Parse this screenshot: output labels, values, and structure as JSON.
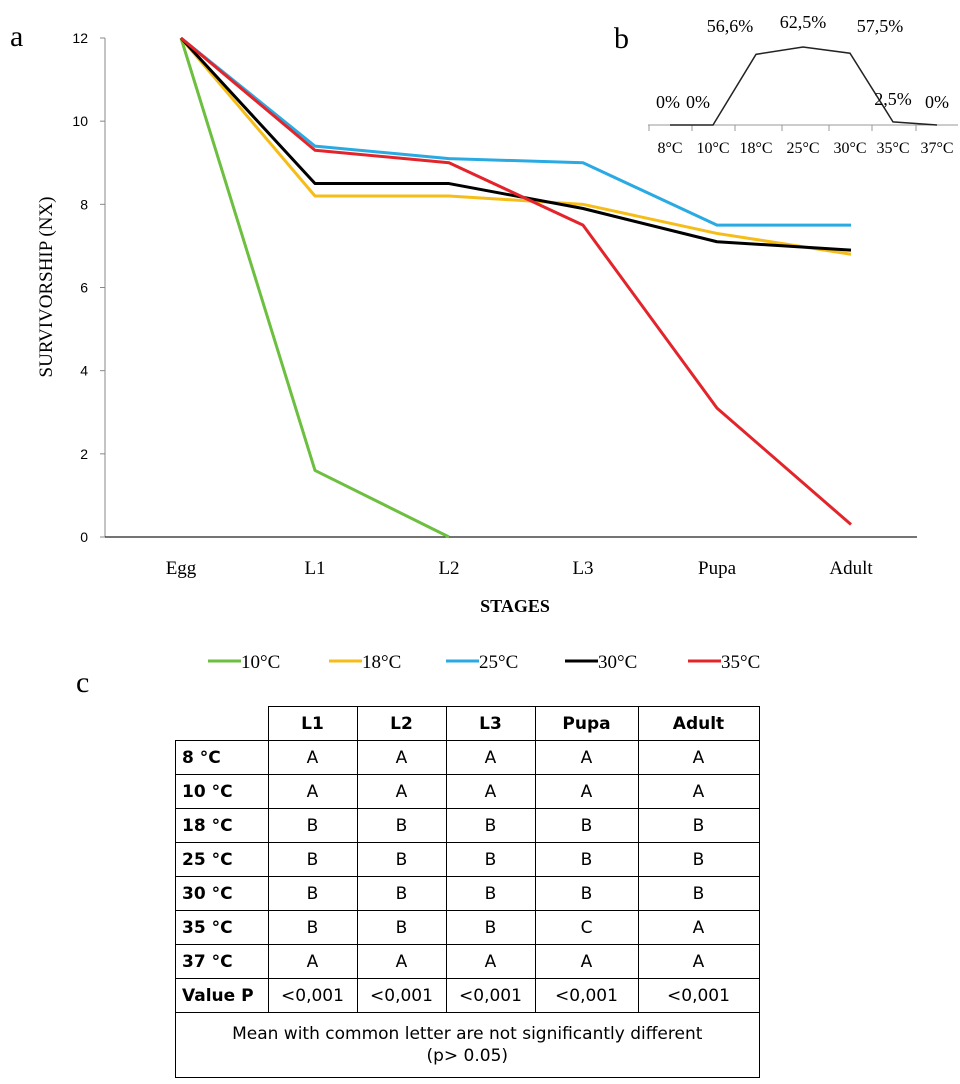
{
  "panel_a": {
    "letter": "a",
    "chart_data": {
      "type": "line",
      "categories": [
        "Egg",
        "L1",
        "L2",
        "L3",
        "Pupa",
        "Adult"
      ],
      "xlabel": "STAGES",
      "ylabel": "SURVIVORSHIP (NX)",
      "ylim": [
        0,
        12
      ],
      "yticks": [
        "0",
        "2",
        "4",
        "6",
        "8",
        "10",
        "12"
      ],
      "grid": false,
      "legend_position": "bottom",
      "series": [
        {
          "name": "10°C",
          "color": "#6cbf3f",
          "values": [
            12,
            1.6,
            0,
            null,
            null,
            null
          ]
        },
        {
          "name": "18°C",
          "color": "#f6bd18",
          "values": [
            12,
            8.2,
            8.2,
            8.0,
            7.3,
            6.8
          ]
        },
        {
          "name": "25°C",
          "color": "#2aaae2",
          "values": [
            12,
            9.4,
            9.1,
            9.0,
            7.5,
            7.5
          ]
        },
        {
          "name": "30°C",
          "color": "#000000",
          "values": [
            12,
            8.5,
            8.5,
            7.9,
            7.1,
            6.9
          ]
        },
        {
          "name": "35°C",
          "color": "#e3242b",
          "values": [
            12,
            9.3,
            9.0,
            7.5,
            3.1,
            0.3
          ]
        }
      ]
    }
  },
  "panel_b": {
    "letter": "b",
    "chart_data": {
      "type": "line",
      "categories": [
        "8°C",
        "10°C",
        "18°C",
        "25°C",
        "30°C",
        "35°C",
        "37°C"
      ],
      "values": [
        0,
        0,
        56.6,
        62.5,
        57.5,
        2.5,
        0
      ],
      "data_labels": [
        "0%",
        "0%",
        "56,6%",
        "62,5%",
        "57,5%",
        "2,5%",
        "0%"
      ],
      "grid": false
    }
  },
  "panel_c": {
    "letter": "c",
    "columns": [
      "L1",
      "L2",
      "L3",
      "Pupa",
      "Adult"
    ],
    "rows": [
      {
        "label": "8 °C",
        "cells": [
          "A",
          "A",
          "A",
          "A",
          "A"
        ]
      },
      {
        "label": "10 °C",
        "cells": [
          "A",
          "A",
          "A",
          "A",
          "A"
        ]
      },
      {
        "label": "18 °C",
        "cells": [
          "B",
          "B",
          "B",
          "B",
          "B"
        ]
      },
      {
        "label": "25 °C",
        "cells": [
          "B",
          "B",
          "B",
          "B",
          "B"
        ]
      },
      {
        "label": "30 °C",
        "cells": [
          "B",
          "B",
          "B",
          "B",
          "B"
        ]
      },
      {
        "label": "35 °C",
        "cells": [
          "B",
          "B",
          "B",
          "C",
          "A"
        ]
      },
      {
        "label": "37 °C",
        "cells": [
          "A",
          "A",
          "A",
          "A",
          "A"
        ]
      },
      {
        "label": "Value P",
        "cells": [
          "<0,001",
          "<0,001",
          "<0,001",
          "<0,001",
          "<0,001"
        ]
      }
    ],
    "note_line1": "Mean with common letter are not significantly different",
    "note_line2": "(p> 0.05)"
  }
}
